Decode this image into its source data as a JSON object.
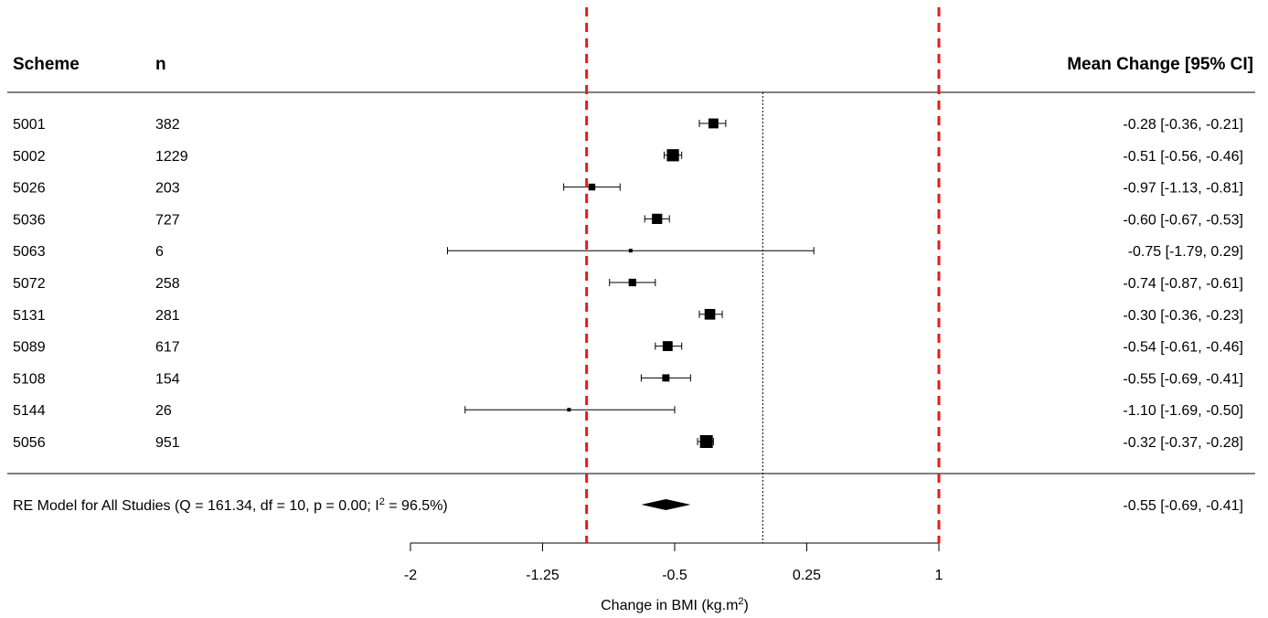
{
  "chart_data": {
    "type": "forest",
    "headers": {
      "scheme": "Scheme",
      "n": "n",
      "estimate": "Mean Change [95% CI]"
    },
    "studies": [
      {
        "scheme": "5001",
        "n": "382",
        "mean": -0.28,
        "lower": -0.36,
        "upper": -0.21,
        "label": "-0.28 [-0.36, -0.21]"
      },
      {
        "scheme": "5002",
        "n": "1229",
        "mean": -0.51,
        "lower": -0.56,
        "upper": -0.46,
        "label": "-0.51 [-0.56, -0.46]"
      },
      {
        "scheme": "5026",
        "n": "203",
        "mean": -0.97,
        "lower": -1.13,
        "upper": -0.81,
        "label": "-0.97 [-1.13, -0.81]"
      },
      {
        "scheme": "5036",
        "n": "727",
        "mean": -0.6,
        "lower": -0.67,
        "upper": -0.53,
        "label": "-0.60 [-0.67, -0.53]"
      },
      {
        "scheme": "5063",
        "n": "6",
        "mean": -0.75,
        "lower": -1.79,
        "upper": 0.29,
        "label": "-0.75 [-1.79,  0.29]"
      },
      {
        "scheme": "5072",
        "n": "258",
        "mean": -0.74,
        "lower": -0.87,
        "upper": -0.61,
        "label": "-0.74 [-0.87, -0.61]"
      },
      {
        "scheme": "5131",
        "n": "281",
        "mean": -0.3,
        "lower": -0.36,
        "upper": -0.23,
        "label": "-0.30 [-0.36, -0.23]"
      },
      {
        "scheme": "5089",
        "n": "617",
        "mean": -0.54,
        "lower": -0.61,
        "upper": -0.46,
        "label": "-0.54 [-0.61, -0.46]"
      },
      {
        "scheme": "5108",
        "n": "154",
        "mean": -0.55,
        "lower": -0.69,
        "upper": -0.41,
        "label": "-0.55 [-0.69, -0.41]"
      },
      {
        "scheme": "5144",
        "n": "26",
        "mean": -1.1,
        "lower": -1.69,
        "upper": -0.5,
        "label": "-1.10 [-1.69, -0.50]"
      },
      {
        "scheme": "5056",
        "n": "951",
        "mean": -0.32,
        "lower": -0.37,
        "upper": -0.28,
        "label": "-0.32 [-0.37, -0.28]"
      }
    ],
    "summary": {
      "label_prefix": "RE Model for All Studies (Q = 161.34, df = 10, p = 0.00; I",
      "label_sup": "2",
      "label_suffix": " = 96.5%)",
      "mean": -0.55,
      "lower": -0.69,
      "upper": -0.41,
      "estimate_label": "-0.55 [-0.69, -0.41]"
    },
    "reference_line": 0,
    "threshold_lines": [
      -1,
      1
    ],
    "x_axis": {
      "ticks": [
        -2,
        -1.25,
        -0.5,
        0.25,
        1
      ],
      "tick_labels": [
        "-2",
        "-1.25",
        "-0.5",
        "0.25",
        "1"
      ],
      "label_main": "Change in BMI (kg.m",
      "label_sup": "2",
      "label_end": ")",
      "xlim": [
        -2,
        1
      ]
    },
    "colors": {
      "threshold": "#e41a1c",
      "ink": "#000000"
    }
  }
}
